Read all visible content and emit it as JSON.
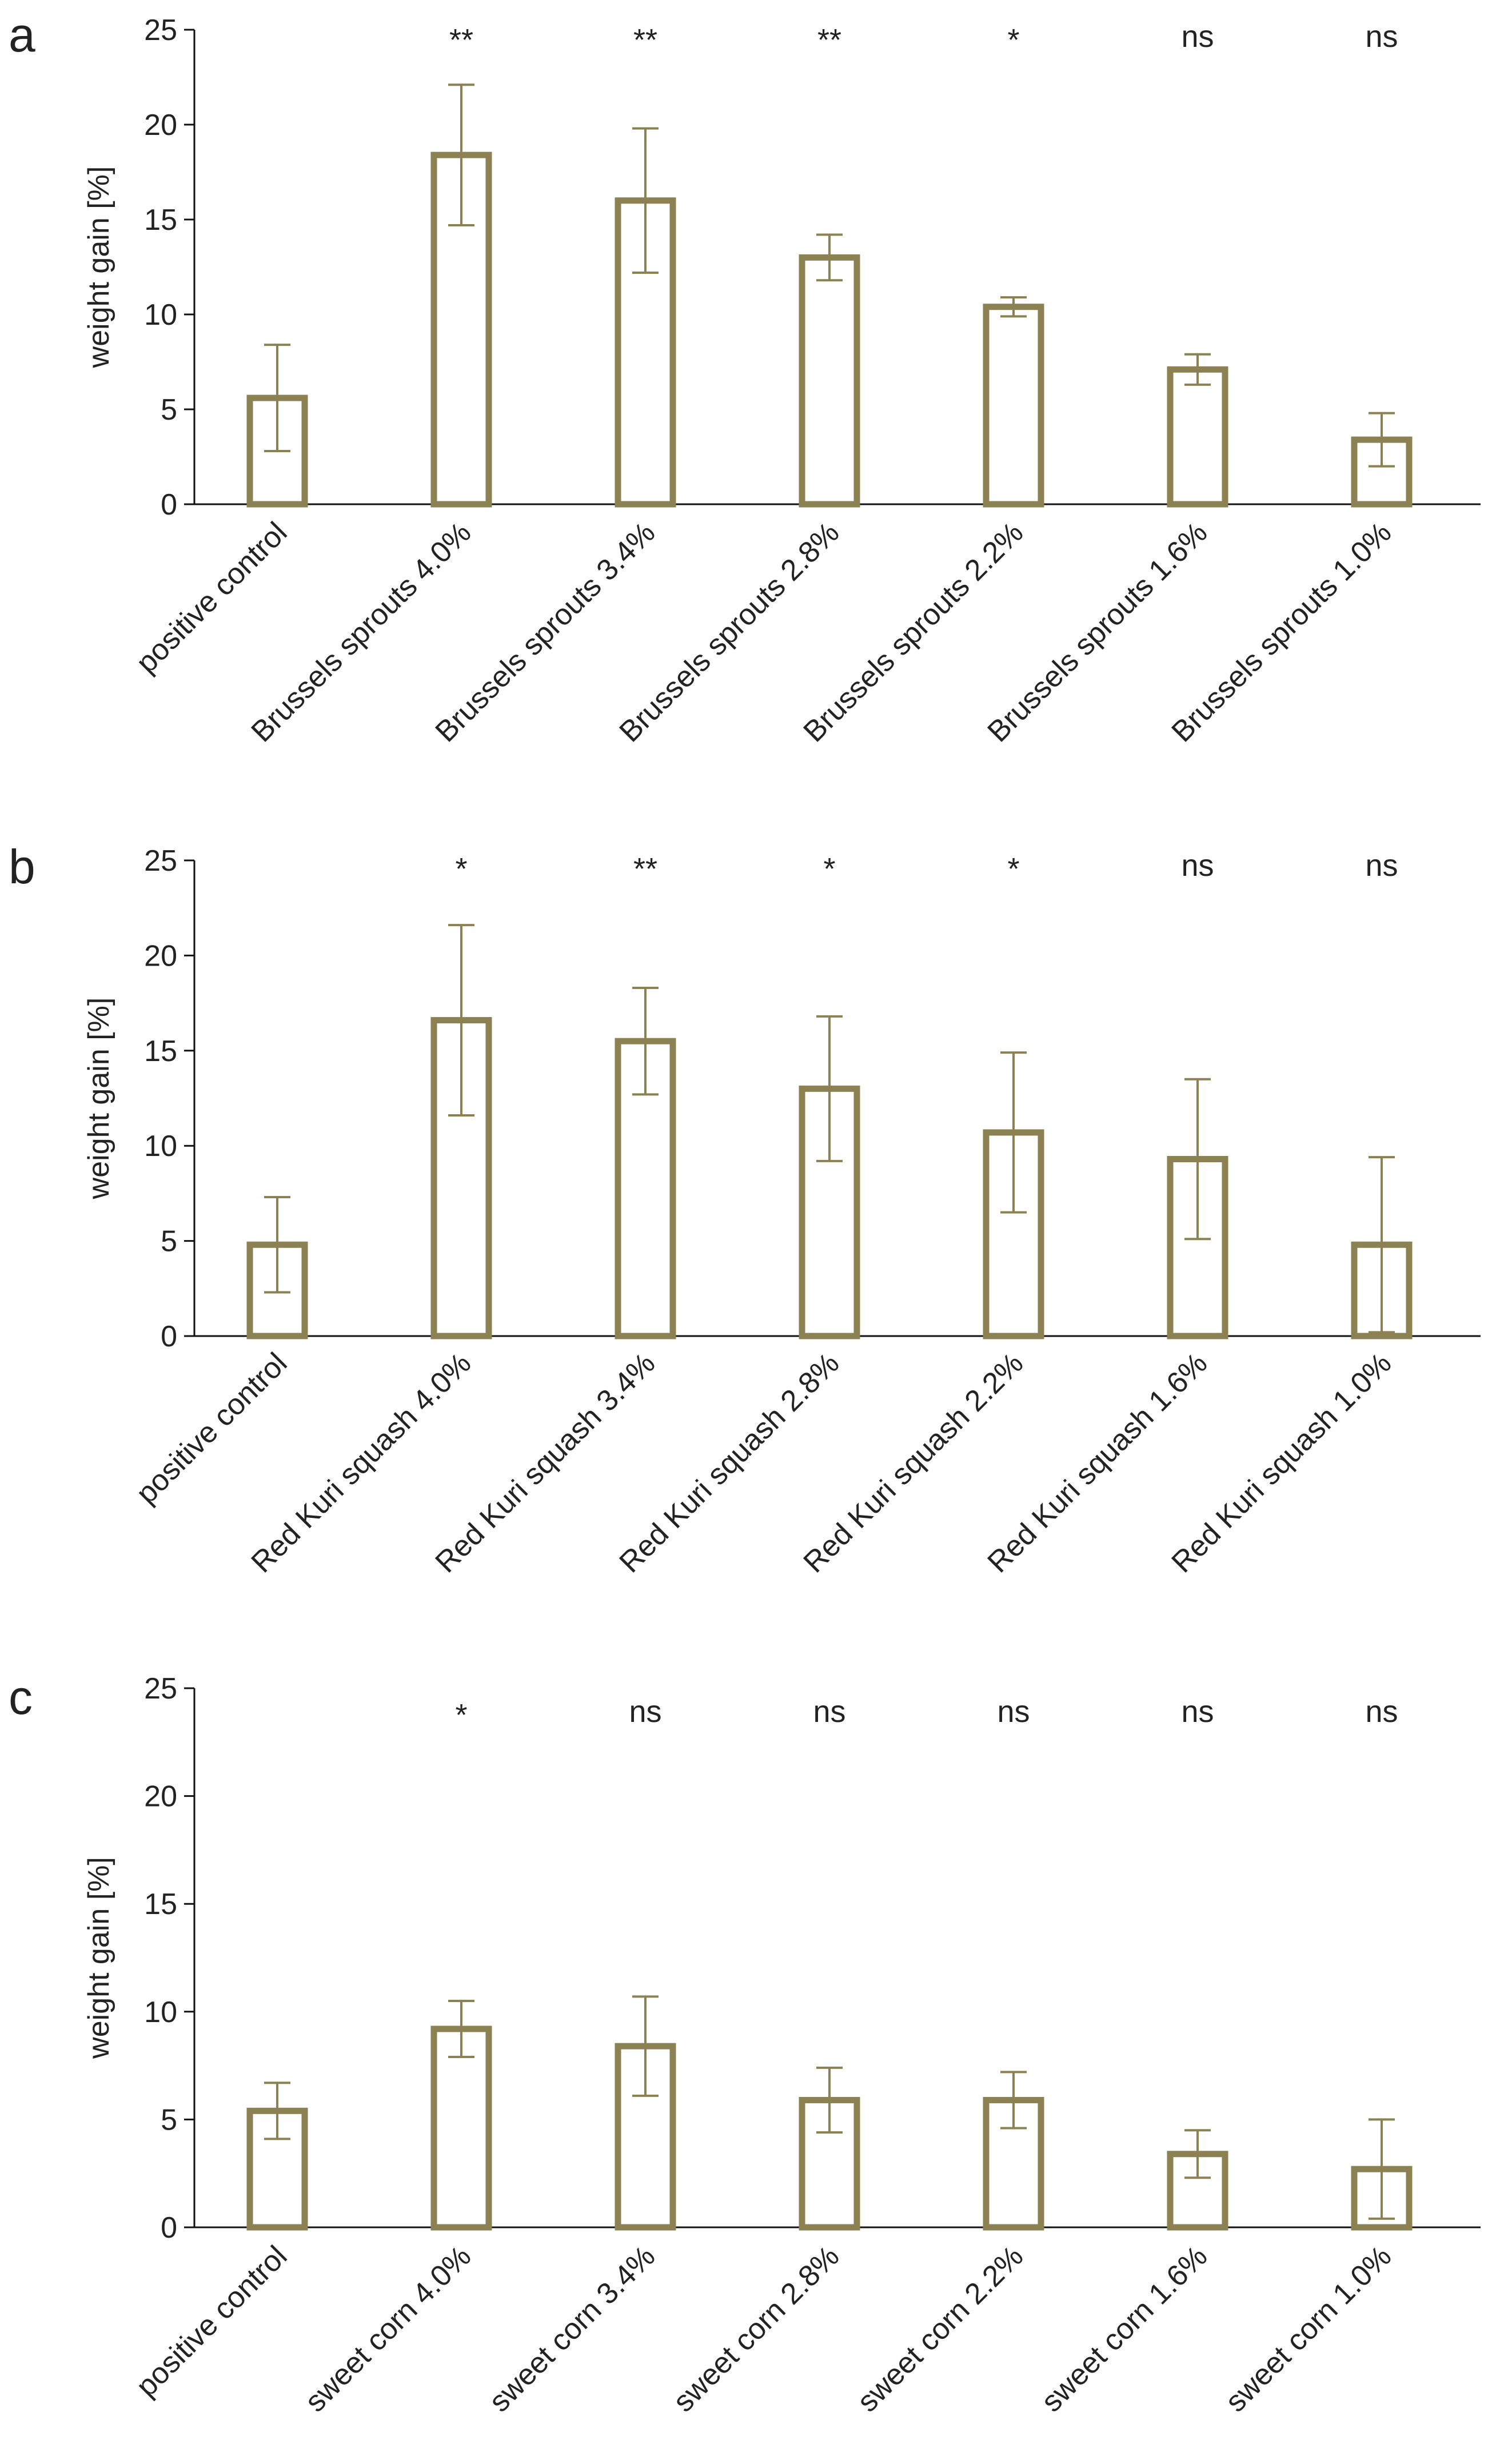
{
  "figure": {
    "color": "#8c8152",
    "axis_color": "#111111",
    "text_color": "#222222"
  },
  "chart_data": [
    {
      "type": "bar",
      "panel": "a",
      "title": "",
      "xlabel": "",
      "ylabel": "weight gain [%]",
      "ylim": [
        0,
        25
      ],
      "yticks": [
        "0",
        "5",
        "10",
        "15",
        "20",
        "25"
      ],
      "categories": [
        "positive control",
        "Brussels sprouts 4.0%",
        "Brussels sprouts 3.4%",
        "Brussels sprouts 2.8%",
        "Brussels sprouts 2.2%",
        "Brussels sprouts 1.6%",
        "Brussels sprouts 1.0%"
      ],
      "values": [
        5.6,
        18.4,
        16.0,
        13.0,
        10.4,
        7.1,
        3.4
      ],
      "errors": [
        2.8,
        3.7,
        3.8,
        1.2,
        0.5,
        0.8,
        1.4
      ],
      "significance": [
        "",
        "**",
        "**",
        "**",
        "*",
        "ns",
        "ns"
      ]
    },
    {
      "type": "bar",
      "panel": "b",
      "title": "",
      "xlabel": "",
      "ylabel": "weight gain [%]",
      "ylim": [
        0,
        25
      ],
      "yticks": [
        "0",
        "5",
        "10",
        "15",
        "20",
        "25"
      ],
      "categories": [
        "positive control",
        "Red Kuri squash 4.0%",
        "Red Kuri squash 3.4%",
        "Red Kuri squash 2.8%",
        "Red Kuri squash 2.2%",
        "Red Kuri squash 1.6%",
        "Red Kuri squash 1.0%"
      ],
      "values": [
        4.8,
        16.6,
        15.5,
        13.0,
        10.7,
        9.3,
        4.8
      ],
      "errors": [
        2.5,
        5.0,
        2.8,
        3.8,
        4.2,
        4.2,
        4.6
      ],
      "significance": [
        "",
        "*",
        "**",
        "*",
        "*",
        "ns",
        "ns"
      ]
    },
    {
      "type": "bar",
      "panel": "c",
      "title": "",
      "xlabel": "",
      "ylabel": "weight gain [%]",
      "ylim": [
        0,
        25
      ],
      "yticks": [
        "0",
        "5",
        "10",
        "15",
        "20",
        "25"
      ],
      "categories": [
        "positive control",
        "sweet corn 4.0%",
        "sweet corn 3.4%",
        "sweet corn 2.8%",
        "sweet corn 2.2%",
        "sweet corn 1.6%",
        "sweet corn 1.0%"
      ],
      "values": [
        5.4,
        9.2,
        8.4,
        5.9,
        5.9,
        3.4,
        2.7
      ],
      "errors": [
        1.3,
        1.3,
        2.3,
        1.5,
        1.3,
        1.1,
        2.3
      ],
      "significance": [
        "",
        "*",
        "ns",
        "ns",
        "ns",
        "ns",
        "ns"
      ]
    }
  ]
}
